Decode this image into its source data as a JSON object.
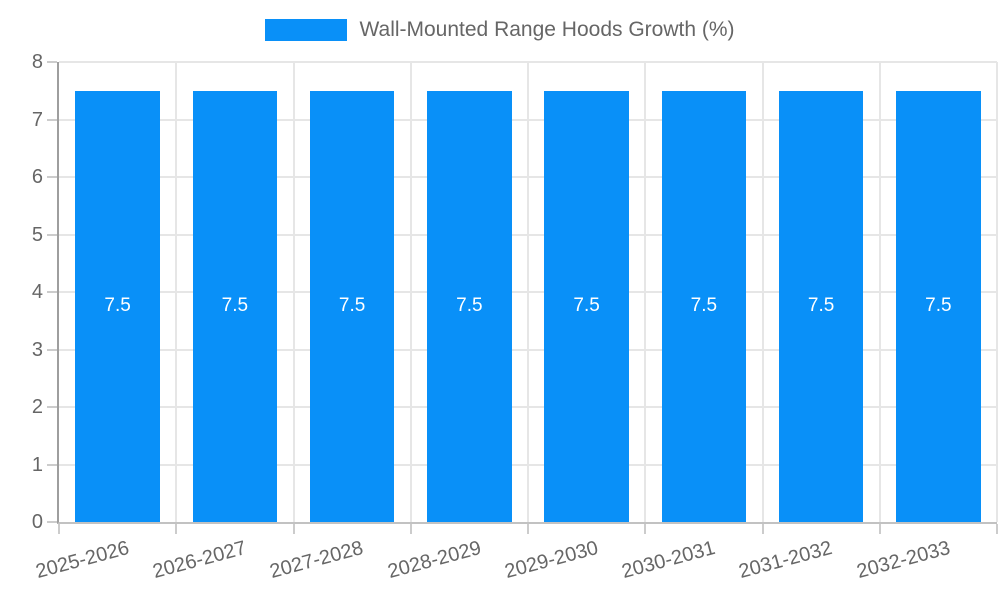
{
  "chart_data": {
    "type": "bar",
    "title": "Wall-Mounted Range Hoods Growth (%)",
    "legend": {
      "label": "Wall-Mounted Range Hoods Growth (%)",
      "position": "top"
    },
    "categories": [
      "2025-2026",
      "2026-2027",
      "2027-2028",
      "2028-2029",
      "2029-2030",
      "2030-2031",
      "2031-2032",
      "2032-2033"
    ],
    "values": [
      7.5,
      7.5,
      7.5,
      7.5,
      7.5,
      7.5,
      7.5,
      7.5
    ],
    "bar_labels": [
      "7.5",
      "7.5",
      "7.5",
      "7.5",
      "7.5",
      "7.5",
      "7.5",
      "7.5"
    ],
    "xlabel": "",
    "ylabel": "",
    "ylim": [
      0,
      8
    ],
    "yticks": [
      0,
      1,
      2,
      3,
      4,
      5,
      6,
      7,
      8
    ],
    "grid": true,
    "x_label_rotation_deg": -15,
    "colors": {
      "bar": "#0990F8",
      "bar_label": "#ffffff",
      "grid": "#e6e6e6",
      "axis_y": "#9e9e9e",
      "axis_x": "#c2c2c2",
      "tick": "#cccccc",
      "text": "#666666"
    }
  }
}
